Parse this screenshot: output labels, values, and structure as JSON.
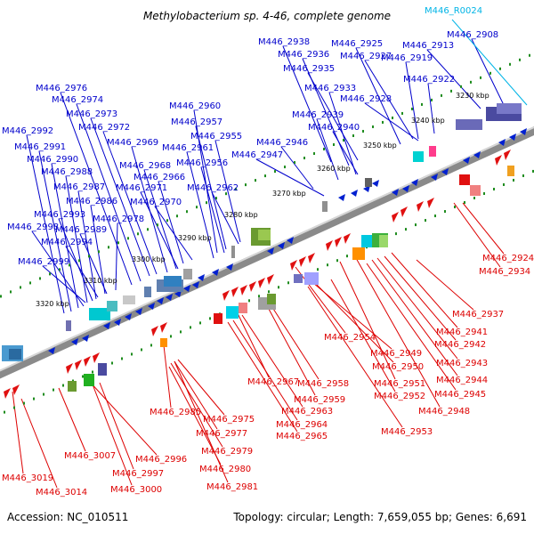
{
  "title": "Methylobacterium sp. 4-46, complete genome",
  "footer": {
    "accession": "Accession: NC_010511",
    "topology": "Topology: circular; Length: 7,659,055 bp; Genes: 6,691"
  },
  "colors": {
    "forward_label": "#0000cc",
    "reverse_label": "#dd0000",
    "rna_label": "#00b4e6",
    "backbone": "#808080",
    "tick": "#1e8c1e"
  },
  "scale_ticks": [
    "3230 kbp",
    "3240 kbp",
    "3250 kbp",
    "3260 kbp",
    "3270 kbp",
    "3280 kbp",
    "3290 kbp",
    "3300 kbp",
    "3310 kbp",
    "3320 kbp"
  ],
  "labels_forward": [
    "M446_2938",
    "M446_2936",
    "M446_2935",
    "M446_2925",
    "M446_2927",
    "M446_2913",
    "M446_2908",
    "M446_2919",
    "M446_2922",
    "M446_2933",
    "M446_2928",
    "M446_2939",
    "M446_2940",
    "M446_2946",
    "M446_2947",
    "M446_2976",
    "M446_2974",
    "M446_2973",
    "M446_2972",
    "M446_2960",
    "M446_2957",
    "M446_2955",
    "M446_2961",
    "M446_2956",
    "M446_2962",
    "M446_2969",
    "M446_2968",
    "M446_2966",
    "M446_2971",
    "M446_2970",
    "M446_2992",
    "M446_2991",
    "M446_2990",
    "M446_2988",
    "M446_2987",
    "M446_2986",
    "M446_2993",
    "M446_2978",
    "M446_2998",
    "M446_2989",
    "M446_2994",
    "M446_2999"
  ],
  "labels_rna": [
    "M446_R0024"
  ],
  "labels_reverse": [
    "M446_2924",
    "M446_2934",
    "M446_2937",
    "M446_2941",
    "M446_2942",
    "M446_2943",
    "M446_2944",
    "M446_2945",
    "M446_2948",
    "M446_2954",
    "M446_2949",
    "M446_2950",
    "M446_2951",
    "M446_2952",
    "M446_2953",
    "M446_2967",
    "M446_2958",
    "M446_2959",
    "M446_2963",
    "M446_2964",
    "M446_2965",
    "M446_2985",
    "M446_2975",
    "M446_2977",
    "M446_2979",
    "M446_2980",
    "M446_2981",
    "M446_2996",
    "M446_2997",
    "M446_3000",
    "M446_3007",
    "M446_3019",
    "M446_3014"
  ]
}
